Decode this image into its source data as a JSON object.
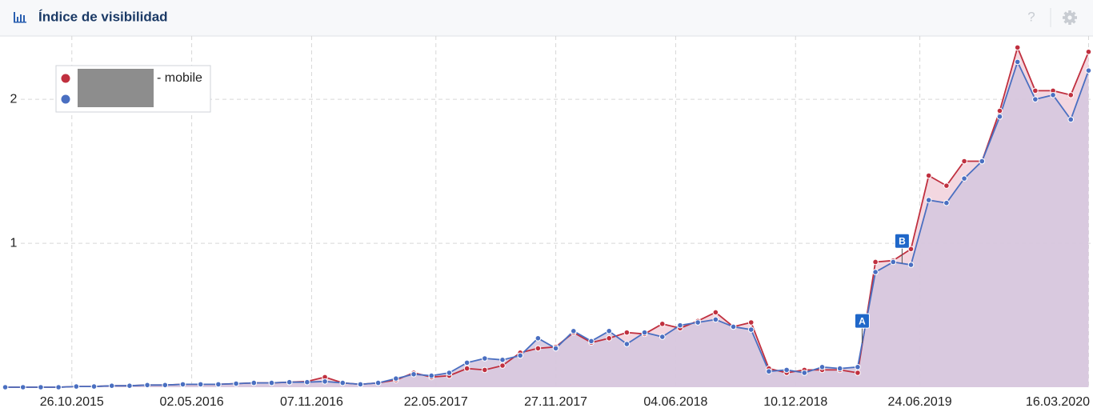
{
  "header": {
    "title": "Índice de visibilidad",
    "help": "?"
  },
  "chart_data": {
    "type": "line",
    "x": [
      "13.07.2015",
      "10.08.2015",
      "07.09.2015",
      "05.10.2015",
      "02.11.2015",
      "30.11.2015",
      "28.12.2015",
      "25.01.2016",
      "22.02.2016",
      "21.03.2016",
      "18.04.2016",
      "16.05.2016",
      "13.06.2016",
      "11.07.2016",
      "08.08.2016",
      "05.09.2016",
      "03.10.2016",
      "31.10.2016",
      "28.11.2016",
      "26.12.2016",
      "23.01.2017",
      "20.02.2017",
      "20.03.2017",
      "17.04.2017",
      "15.05.2017",
      "12.06.2017",
      "10.07.2017",
      "07.08.2017",
      "04.09.2017",
      "02.10.2017",
      "30.10.2017",
      "27.11.2017",
      "25.12.2017",
      "22.01.2018",
      "19.02.2018",
      "19.03.2018",
      "16.04.2018",
      "14.05.2018",
      "11.06.2018",
      "09.07.2018",
      "06.08.2018",
      "03.09.2018",
      "01.10.2018",
      "29.10.2018",
      "26.11.2018",
      "24.12.2018",
      "21.01.2019",
      "18.02.2019",
      "18.03.2019",
      "15.04.2019",
      "13.05.2019",
      "10.06.2019",
      "08.07.2019",
      "05.08.2019",
      "02.09.2019",
      "30.09.2019",
      "28.10.2019",
      "25.11.2019",
      "23.12.2019",
      "20.01.2020",
      "17.02.2020",
      "16.03.2020"
    ],
    "xlim": [
      "06.07.2015",
      "23.03.2020"
    ],
    "xticks": [
      "26.10.2015",
      "02.05.2016",
      "07.11.2016",
      "22.05.2017",
      "27.11.2017",
      "04.06.2018",
      "10.12.2018",
      "24.06.2019",
      "16.03.2020"
    ],
    "ylim": [
      0,
      2.44
    ],
    "yticks": [
      1,
      2
    ],
    "grid": true,
    "series": [
      {
        "name": "- mobile",
        "color": "#c0303f",
        "fill": "#f1d0da",
        "values": [
          0,
          0,
          0,
          0,
          0.005,
          0.005,
          0.01,
          0.01,
          0.015,
          0.015,
          0.02,
          0.02,
          0.02,
          0.025,
          0.03,
          0.03,
          0.035,
          0.04,
          0.07,
          0.03,
          0.02,
          0.03,
          0.05,
          0.1,
          0.07,
          0.08,
          0.13,
          0.12,
          0.15,
          0.24,
          0.27,
          0.28,
          0.38,
          0.31,
          0.34,
          0.38,
          0.37,
          0.44,
          0.41,
          0.46,
          0.52,
          0.42,
          0.45,
          0.13,
          0.1,
          0.12,
          0.12,
          0.12,
          0.1,
          0.87,
          0.88,
          0.96,
          1.47,
          1.4,
          1.57,
          1.57,
          1.92,
          2.36,
          2.06,
          2.06,
          2.03,
          2.33
        ]
      },
      {
        "color": "#4a6fc1",
        "fill": "#d3c7de",
        "values": [
          0,
          0,
          0,
          0,
          0.005,
          0.005,
          0.01,
          0.01,
          0.015,
          0.015,
          0.02,
          0.02,
          0.02,
          0.025,
          0.03,
          0.03,
          0.035,
          0.035,
          0.04,
          0.03,
          0.02,
          0.03,
          0.06,
          0.09,
          0.08,
          0.1,
          0.17,
          0.2,
          0.19,
          0.22,
          0.34,
          0.27,
          0.39,
          0.32,
          0.39,
          0.3,
          0.38,
          0.35,
          0.43,
          0.45,
          0.47,
          0.42,
          0.4,
          0.11,
          0.12,
          0.1,
          0.14,
          0.13,
          0.14,
          0.8,
          0.87,
          0.85,
          1.3,
          1.28,
          1.45,
          1.57,
          1.88,
          2.26,
          2.0,
          2.03,
          1.86,
          2.2
        ]
      }
    ],
    "annotations": [
      {
        "label": "A",
        "x": "25.03.2019"
      },
      {
        "label": "B",
        "x": "27.05.2019"
      }
    ]
  }
}
